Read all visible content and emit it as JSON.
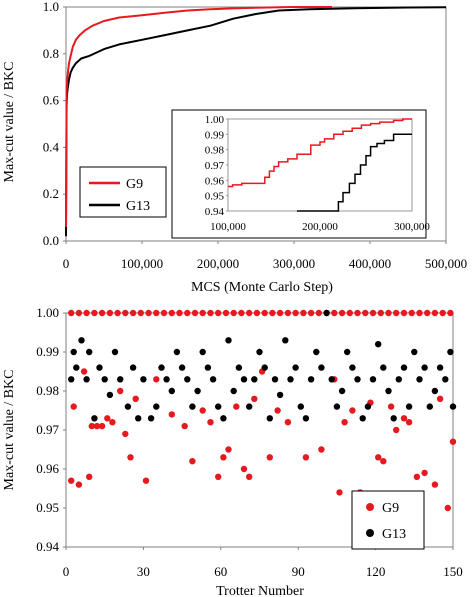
{
  "colors": {
    "g9": "#e8191e",
    "g13": "#000000",
    "axis": "#808080",
    "grid": "#9a9a9a"
  },
  "chart_data": [
    {
      "type": "line",
      "title": "",
      "xlabel": "MCS (Monte Carlo Step)",
      "ylabel": "Max-cut value / BKC",
      "xlim": [
        0,
        500000
      ],
      "ylim": [
        0,
        1
      ],
      "x_ticks": [
        "0",
        "100,000",
        "200,000",
        "300,000",
        "400,000",
        "500,000"
      ],
      "y_ticks": [
        "0.0",
        "0.2",
        "0.4",
        "0.6",
        "0.8",
        "1.0"
      ],
      "legend": {
        "position": "bottom-left",
        "entries": [
          "G9",
          "G13"
        ]
      },
      "series": [
        {
          "name": "G9",
          "color": "#e8191e",
          "x": [
            0,
            800,
            1500,
            2500,
            4000,
            6000,
            9000,
            13000,
            18000,
            25000,
            35000,
            50000,
            70000,
            100000,
            130000,
            160000,
            190000,
            220000,
            250000,
            280000,
            300000,
            320000,
            350000
          ],
          "y": [
            0.06,
            0.64,
            0.68,
            0.72,
            0.76,
            0.79,
            0.83,
            0.86,
            0.88,
            0.9,
            0.92,
            0.94,
            0.955,
            0.965,
            0.975,
            0.985,
            0.99,
            0.994,
            0.997,
            0.999,
            1.0,
            1.0,
            1.0
          ]
        },
        {
          "name": "G13",
          "color": "#000000",
          "x": [
            0,
            800,
            1500,
            2500,
            4000,
            6000,
            9000,
            13000,
            20000,
            30000,
            50000,
            70000,
            100000,
            130000,
            160000,
            190000,
            220000,
            250000,
            280000,
            320000,
            380000,
            450000,
            500000
          ],
          "y": [
            0.02,
            0.58,
            0.63,
            0.66,
            0.69,
            0.72,
            0.74,
            0.76,
            0.78,
            0.79,
            0.82,
            0.84,
            0.86,
            0.88,
            0.9,
            0.92,
            0.95,
            0.97,
            0.985,
            0.99,
            0.995,
            0.998,
            0.999
          ]
        }
      ],
      "inset": {
        "xlim": [
          100000,
          300000
        ],
        "ylim": [
          0.94,
          1.0
        ],
        "x_ticks": [
          "100,000",
          "200,000",
          "300,000"
        ],
        "y_ticks": [
          "0.94",
          "0.95",
          "0.96",
          "0.97",
          "0.98",
          "0.99",
          "1.00"
        ],
        "series": [
          {
            "name": "G9",
            "x": [
              100000,
              105000,
              115000,
              130000,
              140000,
              145000,
              150000,
              155000,
              165000,
              175000,
              180000,
              190000,
              200000,
              205000,
              215000,
              225000,
              235000,
              245000,
              255000,
              265000,
              280000,
              290000,
              300000
            ],
            "y": [
              0.956,
              0.957,
              0.958,
              0.958,
              0.962,
              0.966,
              0.969,
              0.972,
              0.974,
              0.977,
              0.977,
              0.983,
              0.985,
              0.987,
              0.99,
              0.992,
              0.994,
              0.996,
              0.997,
              0.998,
              0.999,
              1.0,
              1.0
            ]
          },
          {
            "name": "G13",
            "x": [
              175000,
              180000,
              200000,
              220000,
              225000,
              232000,
              238000,
              244000,
              250000,
              255000,
              262000,
              270000,
              280000,
              300000
            ],
            "y": [
              0.94,
              0.94,
              0.94,
              0.946,
              0.952,
              0.958,
              0.964,
              0.97,
              0.976,
              0.982,
              0.984,
              0.986,
              0.99,
              0.99
            ]
          }
        ]
      }
    },
    {
      "type": "scatter",
      "title": "",
      "xlabel": "Trotter  Number",
      "ylabel": "Max-cut value / BKC",
      "xlim": [
        0,
        150
      ],
      "ylim": [
        0.94,
        1.0
      ],
      "x_ticks": [
        "0",
        "30",
        "60",
        "90",
        "120",
        "150"
      ],
      "y_ticks": [
        "0.94",
        "0.95",
        "0.96",
        "0.97",
        "0.98",
        "0.99",
        "1.00"
      ],
      "legend": {
        "position": "bottom-right",
        "entries": [
          "G9",
          "G13"
        ]
      },
      "series": [
        {
          "name": "G9",
          "color": "#e8191e",
          "points": [
            [
              2,
              1.0
            ],
            [
              5,
              1.0
            ],
            [
              8,
              1.0
            ],
            [
              11,
              1.0
            ],
            [
              14,
              1.0
            ],
            [
              17,
              1.0
            ],
            [
              20,
              1.0
            ],
            [
              23,
              1.0
            ],
            [
              26,
              1.0
            ],
            [
              29,
              1.0
            ],
            [
              32,
              1.0
            ],
            [
              35,
              1.0
            ],
            [
              38,
              1.0
            ],
            [
              41,
              1.0
            ],
            [
              44,
              1.0
            ],
            [
              47,
              1.0
            ],
            [
              50,
              1.0
            ],
            [
              53,
              1.0
            ],
            [
              56,
              1.0
            ],
            [
              59,
              1.0
            ],
            [
              62,
              1.0
            ],
            [
              65,
              1.0
            ],
            [
              68,
              1.0
            ],
            [
              71,
              1.0
            ],
            [
              74,
              1.0
            ],
            [
              77,
              1.0
            ],
            [
              80,
              1.0
            ],
            [
              83,
              1.0
            ],
            [
              86,
              1.0
            ],
            [
              89,
              1.0
            ],
            [
              92,
              1.0
            ],
            [
              95,
              1.0
            ],
            [
              98,
              1.0
            ],
            [
              101,
              1.0
            ],
            [
              104,
              1.0
            ],
            [
              107,
              1.0
            ],
            [
              110,
              1.0
            ],
            [
              113,
              1.0
            ],
            [
              116,
              1.0
            ],
            [
              119,
              1.0
            ],
            [
              122,
              1.0
            ],
            [
              125,
              1.0
            ],
            [
              128,
              1.0
            ],
            [
              131,
              1.0
            ],
            [
              134,
              1.0
            ],
            [
              137,
              1.0
            ],
            [
              140,
              1.0
            ],
            [
              143,
              1.0
            ],
            [
              146,
              1.0
            ],
            [
              149,
              1.0
            ],
            [
              2,
              0.957
            ],
            [
              3,
              0.976
            ],
            [
              5,
              0.956
            ],
            [
              7,
              0.985
            ],
            [
              9,
              0.958
            ],
            [
              10,
              0.971
            ],
            [
              12,
              0.971
            ],
            [
              14,
              0.971
            ],
            [
              16,
              0.973
            ],
            [
              18,
              0.972
            ],
            [
              21,
              0.98
            ],
            [
              23,
              0.969
            ],
            [
              25,
              0.963
            ],
            [
              27,
              0.978
            ],
            [
              31,
              0.957
            ],
            [
              35,
              0.983
            ],
            [
              41,
              0.974
            ],
            [
              46,
              0.971
            ],
            [
              49,
              0.962
            ],
            [
              53,
              0.975
            ],
            [
              56,
              0.972
            ],
            [
              59,
              0.958
            ],
            [
              61,
              0.963
            ],
            [
              63,
              0.965
            ],
            [
              66,
              0.976
            ],
            [
              69,
              0.96
            ],
            [
              71,
              0.958
            ],
            [
              73,
              0.978
            ],
            [
              76,
              0.985
            ],
            [
              79,
              0.963
            ],
            [
              82,
              0.975
            ],
            [
              86,
              0.972
            ],
            [
              93,
              0.963
            ],
            [
              99,
              0.965
            ],
            [
              104,
              0.983
            ],
            [
              106,
              0.954
            ],
            [
              108,
              0.972
            ],
            [
              111,
              0.975
            ],
            [
              114,
              0.954
            ],
            [
              118,
              0.977
            ],
            [
              121,
              0.963
            ],
            [
              123,
              0.962
            ],
            [
              126,
              0.976
            ],
            [
              128,
              0.97
            ],
            [
              131,
              0.973
            ],
            [
              133,
              0.972
            ],
            [
              136,
              0.958
            ],
            [
              139,
              0.959
            ],
            [
              143,
              0.956
            ],
            [
              145,
              0.978
            ],
            [
              148,
              0.95
            ],
            [
              150,
              0.967
            ]
          ]
        },
        {
          "name": "G13",
          "color": "#000000",
          "points": [
            [
              2,
              0.983
            ],
            [
              3,
              0.99
            ],
            [
              4,
              0.986
            ],
            [
              6,
              0.993
            ],
            [
              8,
              0.983
            ],
            [
              9,
              0.99
            ],
            [
              11,
              0.973
            ],
            [
              13,
              0.986
            ],
            [
              15,
              0.983
            ],
            [
              17,
              0.979
            ],
            [
              19,
              0.99
            ],
            [
              21,
              0.983
            ],
            [
              24,
              0.976
            ],
            [
              26,
              0.986
            ],
            [
              28,
              0.973
            ],
            [
              30,
              0.983
            ],
            [
              33,
              0.973
            ],
            [
              35,
              0.976
            ],
            [
              37,
              0.986
            ],
            [
              39,
              0.983
            ],
            [
              41,
              0.98
            ],
            [
              43,
              0.99
            ],
            [
              45,
              0.986
            ],
            [
              47,
              0.983
            ],
            [
              49,
              0.976
            ],
            [
              51,
              0.98
            ],
            [
              53,
              0.99
            ],
            [
              55,
              0.986
            ],
            [
              57,
              0.983
            ],
            [
              59,
              0.976
            ],
            [
              61,
              0.973
            ],
            [
              63,
              0.993
            ],
            [
              65,
              0.98
            ],
            [
              67,
              0.986
            ],
            [
              69,
              0.983
            ],
            [
              71,
              0.976
            ],
            [
              73,
              0.983
            ],
            [
              75,
              0.99
            ],
            [
              77,
              0.986
            ],
            [
              79,
              0.973
            ],
            [
              81,
              0.983
            ],
            [
              83,
              0.979
            ],
            [
              85,
              0.993
            ],
            [
              87,
              0.983
            ],
            [
              89,
              0.986
            ],
            [
              91,
              0.976
            ],
            [
              93,
              0.973
            ],
            [
              95,
              0.983
            ],
            [
              97,
              0.99
            ],
            [
              99,
              0.986
            ],
            [
              101,
              1.0
            ],
            [
              103,
              0.983
            ],
            [
              105,
              0.976
            ],
            [
              107,
              0.98
            ],
            [
              109,
              0.99
            ],
            [
              111,
              0.986
            ],
            [
              113,
              0.983
            ],
            [
              115,
              0.973
            ],
            [
              117,
              0.976
            ],
            [
              119,
              0.983
            ],
            [
              121,
              0.992
            ],
            [
              123,
              0.986
            ],
            [
              125,
              0.98
            ],
            [
              127,
              0.973
            ],
            [
              129,
              0.983
            ],
            [
              131,
              0.986
            ],
            [
              133,
              0.976
            ],
            [
              135,
              0.99
            ],
            [
              137,
              0.983
            ],
            [
              139,
              0.986
            ],
            [
              141,
              0.976
            ],
            [
              143,
              0.98
            ],
            [
              145,
              0.986
            ],
            [
              147,
              0.983
            ],
            [
              149,
              0.99
            ],
            [
              150,
              0.976
            ]
          ]
        }
      ]
    }
  ]
}
